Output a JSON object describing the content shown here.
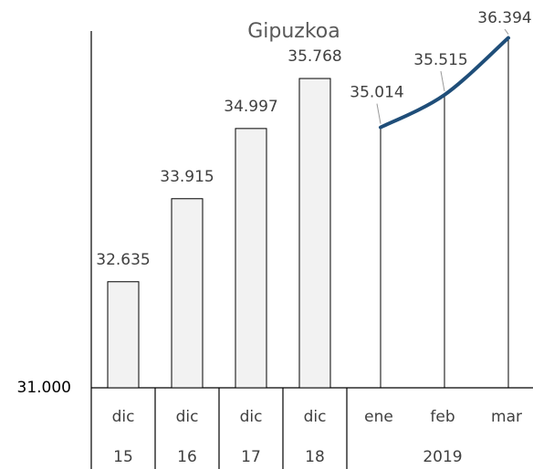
{
  "chart_data": {
    "type": "combo",
    "title": "Gipuzkoa",
    "category_groups": [
      {
        "label": "15",
        "categories": [
          "dic"
        ]
      },
      {
        "label": "16",
        "categories": [
          "dic"
        ]
      },
      {
        "label": "17",
        "categories": [
          "dic"
        ]
      },
      {
        "label": "18",
        "categories": [
          "dic"
        ]
      },
      {
        "label": "2019",
        "categories": [
          "ene",
          "feb",
          "mar"
        ]
      }
    ],
    "series": [
      {
        "type": "bar",
        "color": "#f2f2f2",
        "values": [
          32635,
          33915,
          34997,
          35768,
          null,
          null,
          null
        ],
        "value_labels": [
          "32.635",
          "33.915",
          "34.997",
          "35.768",
          null,
          null,
          null
        ]
      },
      {
        "type": "line",
        "color": "#1f4e79",
        "values": [
          null,
          null,
          null,
          null,
          35014,
          35515,
          36394
        ],
        "value_labels": [
          null,
          null,
          null,
          null,
          "35.014",
          "35.515",
          "36.394"
        ]
      }
    ],
    "ylim": [
      31000,
      36500
    ],
    "yticks": [
      {
        "value": 31000,
        "label": "31.000"
      }
    ]
  }
}
